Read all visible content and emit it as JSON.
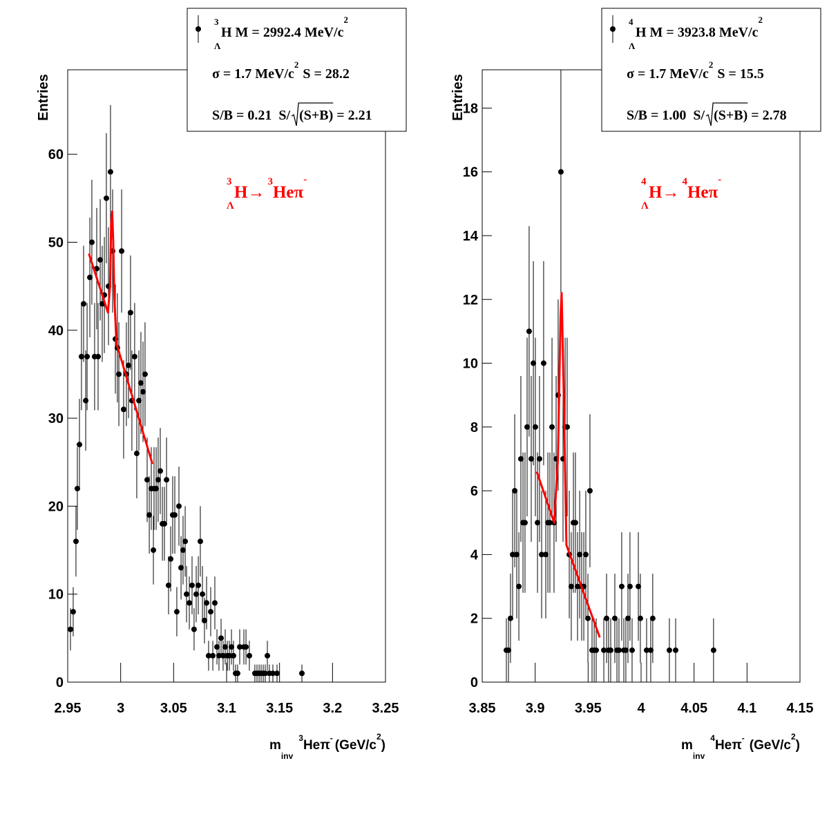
{
  "chart_data": [
    {
      "type": "errorbar",
      "y_label": "Entries",
      "x_label": {
        "m": "m",
        "inv": "inv",
        "mass_number": "3",
        "particles": "Heπ",
        "charge": "-",
        "unit": "(GeV/c",
        "unit_power": "2",
        "close": ")"
      },
      "legend": {
        "mass_number": "3",
        "lambda": "Λ",
        "mass": "H M = 2992.4 MeV/c",
        "mass_power": "2",
        "sigma": "σ = 1.7 MeV/c",
        "sigma_power": "2",
        "signal": "S = 28.2",
        "ratio": "S/B = 0.21  S/",
        "significance": "(S+B) = 2.21"
      },
      "annotation": {
        "mass_number": "3",
        "lambda": "Λ",
        "parent": "H→",
        "daughter_mass_number": "3",
        "daughter": "Heπ",
        "charge": "-",
        "color": "#ff0000"
      },
      "xlim": [
        2.95,
        3.25
      ],
      "xticks": [
        2.95,
        3,
        3.05,
        3.1,
        3.15,
        3.2,
        3.25
      ],
      "ylim": [
        0,
        69.6
      ],
      "yticks": [
        0,
        10,
        20,
        30,
        40,
        50,
        60
      ],
      "color": "#000000",
      "x": [
        2.9526,
        2.9552,
        2.9578,
        2.9591,
        2.9611,
        2.963,
        2.965,
        2.967,
        2.9683,
        2.9709,
        2.9728,
        2.9754,
        2.9774,
        2.9787,
        2.9807,
        2.9826,
        2.9846,
        2.9865,
        2.9885,
        2.9904,
        2.9924,
        2.995,
        2.9969,
        2.9983,
        3.0009,
        3.0028,
        3.0054,
        3.0074,
        3.0093,
        3.0106,
        3.0132,
        3.0152,
        3.0172,
        3.0191,
        3.0211,
        3.023,
        3.025,
        3.027,
        3.0289,
        3.0309,
        3.0315,
        3.0335,
        3.0354,
        3.0374,
        3.0394,
        3.0413,
        3.0433,
        3.0452,
        3.0472,
        3.0491,
        3.0511,
        3.053,
        3.055,
        3.057,
        3.0589,
        3.0609,
        3.0622,
        3.0648,
        3.0674,
        3.0693,
        3.0713,
        3.0733,
        3.0752,
        3.0772,
        3.0791,
        3.0811,
        3.083,
        3.085,
        3.087,
        3.0889,
        3.0909,
        3.0928,
        3.0948,
        3.0967,
        3.0987,
        3.1007,
        3.1026,
        3.1046,
        3.1065,
        3.1085,
        3.1104,
        3.1124,
        3.1163,
        3.1183,
        3.1215,
        3.1267,
        3.1287,
        3.1307,
        3.1326,
        3.1346,
        3.1365,
        3.1385,
        3.1404,
        3.1437,
        3.1476,
        3.1711
      ],
      "values": [
        6,
        8,
        16,
        22,
        27,
        37,
        43,
        32,
        37,
        46,
        50,
        37,
        47,
        37,
        48,
        43,
        44,
        55,
        45,
        58,
        49,
        39,
        38,
        35,
        49,
        31,
        35,
        36,
        42,
        32,
        37,
        26,
        32,
        34,
        33,
        35,
        23,
        19,
        22,
        15,
        22,
        22,
        23,
        24,
        18,
        18,
        23,
        11,
        14,
        19,
        19,
        8,
        20,
        13,
        15,
        16,
        10,
        9,
        11,
        6,
        10,
        11,
        16,
        10,
        7,
        9,
        3,
        8,
        3,
        9,
        4,
        3,
        5,
        3,
        4,
        3,
        3,
        4,
        3,
        1,
        1,
        4,
        4,
        4,
        3,
        1,
        1,
        1,
        1,
        1,
        1,
        3,
        1,
        1,
        1,
        1
      ],
      "errors": [
        2.4,
        2.8,
        4,
        4.7,
        5.2,
        6.1,
        6.6,
        5.7,
        6.1,
        6.8,
        7.1,
        6.1,
        6.9,
        6.1,
        6.9,
        6.6,
        6.6,
        7.4,
        6.7,
        7.6,
        7,
        6.2,
        6.2,
        5.9,
        7,
        5.6,
        5.9,
        6,
        6.5,
        5.7,
        6.1,
        5.1,
        5.7,
        5.8,
        5.7,
        5.9,
        4.8,
        4.4,
        4.7,
        3.9,
        4.7,
        4.7,
        4.8,
        4.9,
        4.2,
        4.2,
        4.8,
        3.3,
        3.7,
        4.4,
        4.4,
        2.8,
        4.5,
        3.6,
        3.9,
        4,
        3.2,
        3,
        3.3,
        2.4,
        3.2,
        3.3,
        4,
        3.2,
        2.6,
        3,
        1.7,
        2.8,
        1.7,
        3,
        2,
        1.7,
        2.2,
        1.7,
        2,
        1.7,
        1.7,
        2,
        1.7,
        1,
        1,
        2,
        2,
        2,
        1.7,
        1,
        1,
        1,
        1,
        1,
        1,
        1.7,
        1,
        1,
        1,
        1
      ],
      "fit": {
        "color": "#ff0000",
        "x": [
          2.97,
          2.988,
          2.99,
          2.991,
          2.992,
          2.993,
          2.994,
          2.996,
          3.03
        ],
        "values": [
          48.7,
          42,
          45,
          52,
          53.5,
          50,
          44,
          38.5,
          24.8
        ]
      }
    },
    {
      "type": "errorbar",
      "y_label": "Entries",
      "x_label": {
        "m": "m",
        "inv": "inv",
        "mass_number": "4",
        "particles": "Heπ",
        "charge": "-",
        "unit": "(GeV/c",
        "unit_power": "2",
        "close": ")"
      },
      "legend": {
        "mass_number": "4",
        "lambda": "Λ",
        "mass": "H M = 3923.8 MeV/c",
        "mass_power": "2",
        "sigma": "σ = 1.7 MeV/c",
        "sigma_power": "2",
        "signal": "S = 15.5",
        "ratio": "S/B = 1.00  S/",
        "significance": "(S+B) = 2.78"
      },
      "annotation": {
        "mass_number": "4",
        "lambda": "Λ",
        "parent": "H→",
        "daughter_mass_number": "4",
        "daughter": "Heπ",
        "charge": "-",
        "color": "#ff0000"
      },
      "xlim": [
        3.85,
        4.15
      ],
      "xticks": [
        3.85,
        3.9,
        3.95,
        4,
        4.05,
        4.1,
        4.15
      ],
      "ylim": [
        0,
        19.2
      ],
      "yticks": [
        0,
        2,
        4,
        6,
        8,
        10,
        12,
        14,
        16,
        18
      ],
      "color": "#000000",
      "x": [
        3.8728,
        3.8748,
        3.8767,
        3.8787,
        3.8807,
        3.8826,
        3.8846,
        3.8865,
        3.8885,
        3.8904,
        3.8924,
        3.8943,
        3.8963,
        3.8983,
        3.9002,
        3.9022,
        3.9041,
        3.9061,
        3.908,
        3.91,
        3.912,
        3.9139,
        3.9159,
        3.9178,
        3.9198,
        3.9217,
        3.9243,
        3.9263,
        3.9283,
        3.9302,
        3.9322,
        3.9341,
        3.9361,
        3.938,
        3.94,
        3.942,
        3.9439,
        3.9459,
        3.9478,
        3.9498,
        3.9517,
        3.9537,
        3.9557,
        3.9576,
        3.9648,
        3.9674,
        3.9693,
        3.9713,
        3.9752,
        3.9772,
        3.9791,
        3.9817,
        3.9837,
        3.9856,
        3.9876,
        3.9895,
        3.9915,
        3.9974,
        3.9993,
        4.0052,
        4.0091,
        4.011,
        4.0267,
        4.0326,
        4.0684
      ],
      "values": [
        1,
        1,
        2,
        4,
        6,
        4,
        3,
        7,
        5,
        5,
        8,
        11,
        7,
        10,
        8,
        5,
        7,
        4,
        10,
        4,
        5,
        5,
        8,
        5,
        7,
        9,
        16,
        7,
        8,
        8,
        4,
        3,
        5,
        5,
        3,
        4,
        3,
        3,
        4,
        2,
        6,
        1,
        1,
        1,
        1,
        2,
        1,
        1,
        2,
        1,
        1,
        3,
        1,
        1,
        2,
        3,
        1,
        3,
        2,
        1,
        1,
        2,
        1,
        1,
        1
      ],
      "errors": [
        1,
        1,
        1.4,
        2,
        2.4,
        2,
        1.7,
        2.6,
        2.2,
        2.2,
        2.8,
        3.3,
        2.6,
        3.2,
        2.8,
        2.2,
        2.6,
        2,
        3.2,
        2,
        2.2,
        2.2,
        2.8,
        2.2,
        2.6,
        3,
        4,
        2.6,
        2.8,
        2.8,
        2,
        1.7,
        2.2,
        2.2,
        1.7,
        2,
        1.7,
        1.7,
        2,
        1.4,
        2.4,
        1,
        1,
        1,
        1,
        1.4,
        1,
        1,
        1.4,
        1,
        1,
        1.7,
        1,
        1,
        1.4,
        1.7,
        1,
        1.7,
        1.4,
        1,
        1,
        1.4,
        1,
        1,
        1
      ],
      "fit": {
        "color": "#ff0000",
        "x": [
          3.9015,
          3.918,
          3.9215,
          3.924,
          3.925,
          3.927,
          3.9295,
          3.961
        ],
        "values": [
          6.6,
          5,
          7,
          11.5,
          12.2,
          9,
          4.3,
          1.4
        ]
      }
    }
  ]
}
